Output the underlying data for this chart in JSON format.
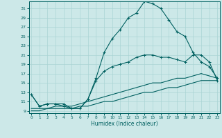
{
  "xlabel": "Humidex (Indice chaleur)",
  "background_color": "#cce8e8",
  "grid_color": "#aad4d4",
  "line_color": "#006060",
  "x_ticks": [
    0,
    1,
    2,
    3,
    4,
    5,
    6,
    7,
    8,
    9,
    10,
    11,
    12,
    13,
    14,
    15,
    16,
    17,
    18,
    19,
    20,
    21,
    22,
    23
  ],
  "y_ticks": [
    9,
    11,
    13,
    15,
    17,
    19,
    21,
    23,
    25,
    27,
    29,
    31
  ],
  "xlim": [
    -0.3,
    23.3
  ],
  "ylim": [
    8.5,
    32.5
  ],
  "series1_x": [
    0,
    1,
    2,
    3,
    4,
    5,
    6,
    7,
    8,
    9,
    10,
    11,
    12,
    13,
    14,
    15,
    16,
    17,
    18,
    19,
    20,
    21,
    22,
    23
  ],
  "series1_y": [
    12.5,
    10.0,
    10.5,
    10.5,
    10.5,
    9.5,
    9.5,
    11.5,
    16.0,
    21.5,
    24.5,
    26.5,
    29.0,
    30.0,
    32.5,
    32.0,
    31.0,
    28.5,
    26.0,
    25.0,
    21.5,
    19.5,
    18.5,
    16.0
  ],
  "series2_x": [
    0,
    1,
    2,
    3,
    4,
    5,
    6,
    7,
    8,
    9,
    10,
    11,
    12,
    13,
    14,
    15,
    16,
    17,
    18,
    19,
    20,
    21,
    22,
    23
  ],
  "series2_y": [
    12.5,
    10.0,
    10.5,
    10.5,
    10.0,
    9.5,
    9.5,
    11.5,
    15.5,
    17.5,
    18.5,
    19.0,
    19.5,
    20.5,
    21.0,
    21.0,
    20.5,
    20.5,
    20.0,
    19.5,
    21.0,
    21.0,
    19.5,
    15.5
  ],
  "series3_x": [
    0,
    1,
    2,
    3,
    4,
    5,
    6,
    7,
    8,
    9,
    10,
    11,
    12,
    13,
    14,
    15,
    16,
    17,
    18,
    19,
    20,
    21,
    22,
    23
  ],
  "series3_y": [
    9.5,
    9.5,
    9.5,
    10.0,
    10.0,
    10.0,
    10.5,
    11.0,
    11.5,
    12.0,
    12.5,
    13.0,
    13.5,
    14.0,
    14.5,
    15.0,
    15.0,
    15.5,
    16.0,
    16.0,
    16.5,
    17.0,
    16.5,
    16.0
  ],
  "series4_x": [
    0,
    1,
    2,
    3,
    4,
    5,
    6,
    7,
    8,
    9,
    10,
    11,
    12,
    13,
    14,
    15,
    16,
    17,
    18,
    19,
    20,
    21,
    22,
    23
  ],
  "series4_y": [
    9.0,
    9.0,
    9.5,
    9.5,
    9.5,
    9.5,
    10.0,
    10.0,
    10.5,
    11.0,
    11.0,
    11.5,
    12.0,
    12.5,
    13.0,
    13.0,
    13.5,
    14.0,
    14.0,
    14.5,
    15.0,
    15.5,
    15.5,
    15.5
  ]
}
